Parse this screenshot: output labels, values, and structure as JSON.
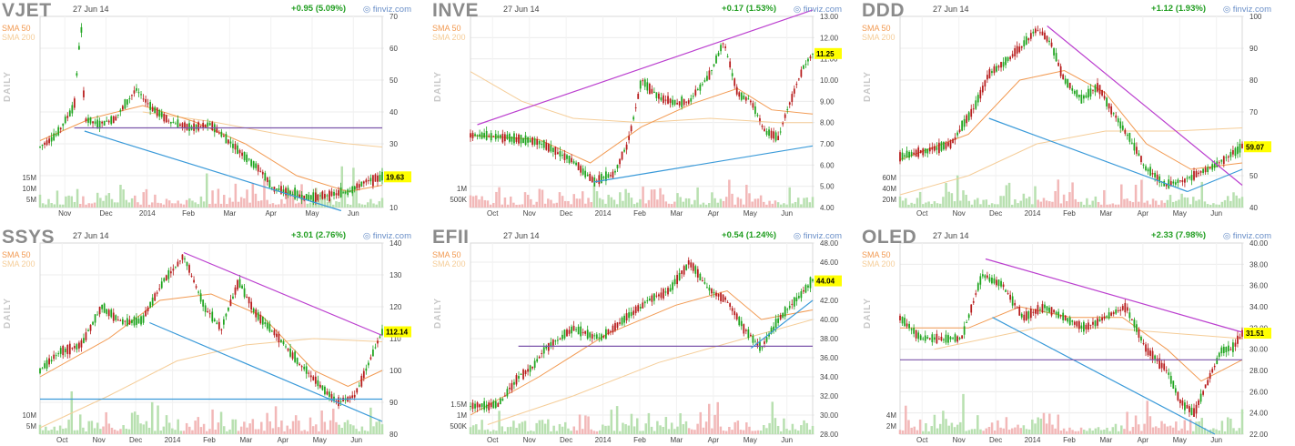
{
  "panels": [
    {
      "ticker": "VJET",
      "date": "27 Jun 14",
      "sma50": "SMA 50",
      "sma200": "SMA 200",
      "change": "+0.95 (5.09%)",
      "finviz": "finviz.com",
      "daily": "DAILY",
      "last": "19.63",
      "colors": {
        "up": "#1fa51f",
        "down": "#b71c1c",
        "sma50": "#f29a52",
        "sma200": "#f5cd98",
        "price_label_bg": "#ffff00"
      }
    },
    {
      "ticker": "INVE",
      "date": "27 Jun 14",
      "sma50": "SMA 50",
      "sma200": "SMA 200",
      "change": "+0.17 (1.53%)",
      "finviz": "finviz.com",
      "daily": "DAILY",
      "last": "11.25"
    },
    {
      "ticker": "DDD",
      "date": "27 Jun 14",
      "sma50": "SMA 50",
      "sma200": "SMA 200",
      "change": "+1.12 (1.93%)",
      "finviz": "finviz.com",
      "daily": "DAILY",
      "last": "59.07"
    },
    {
      "ticker": "SSYS",
      "date": "27 Jun 14",
      "sma50": "SMA 50",
      "sma200": "SMA 200",
      "change": "+3.01 (2.76%)",
      "finviz": "finviz.com",
      "daily": "DAILY",
      "last": "112.14"
    },
    {
      "ticker": "EFII",
      "date": "27 Jun 14",
      "sma50": "SMA 50",
      "sma200": "SMA 200",
      "change": "+0.54 (1.24%)",
      "finviz": "finviz.com",
      "daily": "DAILY",
      "last": "44.04"
    },
    {
      "ticker": "OLED",
      "date": "27 Jun 14",
      "sma50": "SMA 50",
      "sma200": "SMA 200",
      "change": "+2.33 (7.98%)",
      "finviz": "finviz.com",
      "daily": "DAILY",
      "last": "31.51"
    }
  ],
  "chart_data": [
    {
      "type": "candlestick",
      "ticker": "VJET",
      "x_ticks": [
        "Nov",
        "Dec",
        "2014",
        "Feb",
        "Mar",
        "Apr",
        "May",
        "Jun"
      ],
      "y_ticks": [
        10,
        20,
        30,
        40,
        50,
        60,
        70
      ],
      "ylim": [
        10,
        70
      ],
      "volume_ticks": [
        "5M",
        "10M",
        "15M"
      ],
      "price_path": [
        [
          0,
          29
        ],
        [
          0.05,
          33
        ],
        [
          0.1,
          42
        ],
        [
          0.12,
          68
        ],
        [
          0.13,
          38
        ],
        [
          0.17,
          36
        ],
        [
          0.22,
          38
        ],
        [
          0.28,
          47
        ],
        [
          0.33,
          41
        ],
        [
          0.38,
          37
        ],
        [
          0.44,
          35
        ],
        [
          0.5,
          36
        ],
        [
          0.55,
          31
        ],
        [
          0.6,
          26
        ],
        [
          0.65,
          21
        ],
        [
          0.68,
          16
        ],
        [
          0.72,
          15
        ],
        [
          0.78,
          13
        ],
        [
          0.85,
          14
        ],
        [
          0.9,
          15
        ],
        [
          0.95,
          18
        ],
        [
          1.0,
          19.63
        ]
      ],
      "sma50": [
        [
          0,
          31
        ],
        [
          0.15,
          38
        ],
        [
          0.3,
          42
        ],
        [
          0.45,
          37
        ],
        [
          0.6,
          30
        ],
        [
          0.75,
          20
        ],
        [
          0.9,
          15
        ],
        [
          1,
          17
        ]
      ],
      "sma200": [
        [
          0.3,
          40
        ],
        [
          0.5,
          37
        ],
        [
          0.7,
          33
        ],
        [
          0.9,
          30
        ],
        [
          1,
          29
        ]
      ],
      "trendlines": [
        {
          "color": "#3a9ad9",
          "from": [
            0.13,
            34
          ],
          "to": [
            0.88,
            9
          ]
        },
        {
          "color": "#7b55aa",
          "from": [
            0.1,
            35
          ],
          "to": [
            1,
            35
          ]
        }
      ],
      "last": 19.63,
      "change": "+0.95 (5.09%)"
    },
    {
      "type": "candlestick",
      "ticker": "INVE",
      "x_ticks": [
        "Oct",
        "Nov",
        "Dec",
        "2014",
        "Feb",
        "Mar",
        "Apr",
        "May",
        "Jun"
      ],
      "y_ticks": [
        4,
        5,
        6,
        7,
        8,
        9,
        10,
        11,
        12,
        13
      ],
      "ylim": [
        4,
        13
      ],
      "volume_ticks": [
        "500K",
        "1M"
      ],
      "price_path": [
        [
          0,
          7.4
        ],
        [
          0.1,
          7.3
        ],
        [
          0.2,
          7.1
        ],
        [
          0.3,
          6.2
        ],
        [
          0.36,
          5.2
        ],
        [
          0.42,
          5.6
        ],
        [
          0.46,
          7.0
        ],
        [
          0.5,
          10.0
        ],
        [
          0.55,
          9.2
        ],
        [
          0.6,
          8.9
        ],
        [
          0.64,
          9.0
        ],
        [
          0.7,
          10.3
        ],
        [
          0.74,
          11.8
        ],
        [
          0.78,
          9.4
        ],
        [
          0.82,
          9.0
        ],
        [
          0.86,
          7.6
        ],
        [
          0.9,
          7.3
        ],
        [
          0.93,
          8.8
        ],
        [
          0.97,
          10.5
        ],
        [
          1.0,
          11.25
        ]
      ],
      "sma50": [
        [
          0,
          7.4
        ],
        [
          0.2,
          7.2
        ],
        [
          0.35,
          6.1
        ],
        [
          0.5,
          7.8
        ],
        [
          0.65,
          8.9
        ],
        [
          0.78,
          9.6
        ],
        [
          0.88,
          8.6
        ],
        [
          1,
          8.4
        ]
      ],
      "sma200": [
        [
          0,
          10.4
        ],
        [
          0.15,
          9.0
        ],
        [
          0.3,
          8.2
        ],
        [
          0.5,
          8.0
        ],
        [
          0.7,
          8.2
        ],
        [
          0.9,
          8.0
        ],
        [
          1,
          8.0
        ]
      ],
      "trendlines": [
        {
          "color": "#bb3fcf",
          "from": [
            0.02,
            7.9
          ],
          "to": [
            1,
            13.3
          ]
        },
        {
          "color": "#3a9ad9",
          "from": [
            0.36,
            5.2
          ],
          "to": [
            1,
            6.9
          ]
        }
      ],
      "last": 11.25,
      "change": "+0.17 (1.53%)"
    },
    {
      "type": "candlestick",
      "ticker": "DDD",
      "x_ticks": [
        "Oct",
        "Nov",
        "Dec",
        "2014",
        "Feb",
        "Mar",
        "Apr",
        "May",
        "Jun"
      ],
      "y_ticks": [
        40,
        50,
        60,
        70,
        80,
        90,
        100
      ],
      "ylim": [
        40,
        100
      ],
      "volume_ticks": [
        "20M",
        "40M",
        "60M"
      ],
      "price_path": [
        [
          0,
          56
        ],
        [
          0.08,
          58
        ],
        [
          0.15,
          60
        ],
        [
          0.22,
          72
        ],
        [
          0.26,
          82
        ],
        [
          0.3,
          85
        ],
        [
          0.35,
          90
        ],
        [
          0.4,
          96
        ],
        [
          0.44,
          92
        ],
        [
          0.48,
          80
        ],
        [
          0.53,
          74
        ],
        [
          0.58,
          78
        ],
        [
          0.62,
          70
        ],
        [
          0.67,
          62
        ],
        [
          0.72,
          52
        ],
        [
          0.78,
          47
        ],
        [
          0.84,
          49
        ],
        [
          0.88,
          51
        ],
        [
          0.93,
          54
        ],
        [
          1.0,
          59.07
        ]
      ],
      "sma50": [
        [
          0,
          55
        ],
        [
          0.2,
          63
        ],
        [
          0.35,
          80
        ],
        [
          0.48,
          83
        ],
        [
          0.6,
          76
        ],
        [
          0.72,
          60
        ],
        [
          0.85,
          52
        ],
        [
          1,
          54
        ]
      ],
      "sma200": [
        [
          0,
          44
        ],
        [
          0.2,
          50
        ],
        [
          0.4,
          60
        ],
        [
          0.6,
          64
        ],
        [
          0.8,
          64
        ],
        [
          1,
          65
        ]
      ],
      "trendlines": [
        {
          "color": "#bb3fcf",
          "from": [
            0.43,
            97
          ],
          "to": [
            1,
            47
          ]
        },
        {
          "color": "#3a9ad9",
          "from": [
            0.26,
            68
          ],
          "to": [
            0.84,
            45
          ]
        },
        {
          "color": "#3a9ad9",
          "from": [
            0.84,
            45
          ],
          "to": [
            1,
            52
          ]
        }
      ],
      "last": 59.07,
      "change": "+1.12 (1.93%)"
    },
    {
      "type": "candlestick",
      "ticker": "SSYS",
      "x_ticks": [
        "Oct",
        "Nov",
        "Dec",
        "2014",
        "Feb",
        "Mar",
        "Apr",
        "May",
        "Jun"
      ],
      "y_ticks": [
        80,
        90,
        100,
        110,
        120,
        130,
        140
      ],
      "ylim": [
        80,
        140
      ],
      "volume_ticks": [
        "5M",
        "10M"
      ],
      "price_path": [
        [
          0,
          100
        ],
        [
          0.06,
          106
        ],
        [
          0.12,
          108
        ],
        [
          0.18,
          120
        ],
        [
          0.24,
          115
        ],
        [
          0.3,
          116
        ],
        [
          0.36,
          128
        ],
        [
          0.42,
          136
        ],
        [
          0.48,
          120
        ],
        [
          0.53,
          113
        ],
        [
          0.58,
          128
        ],
        [
          0.63,
          118
        ],
        [
          0.7,
          110
        ],
        [
          0.76,
          102
        ],
        [
          0.82,
          95
        ],
        [
          0.87,
          90
        ],
        [
          0.92,
          92
        ],
        [
          0.96,
          102
        ],
        [
          1.0,
          112.14
        ]
      ],
      "sma50": [
        [
          0,
          98
        ],
        [
          0.2,
          110
        ],
        [
          0.35,
          122
        ],
        [
          0.5,
          124
        ],
        [
          0.65,
          117
        ],
        [
          0.8,
          100
        ],
        [
          0.9,
          95
        ],
        [
          1,
          100
        ]
      ],
      "sma200": [
        [
          0,
          82
        ],
        [
          0.2,
          92
        ],
        [
          0.4,
          103
        ],
        [
          0.6,
          108
        ],
        [
          0.8,
          110
        ],
        [
          1,
          109
        ]
      ],
      "trendlines": [
        {
          "color": "#bb3fcf",
          "from": [
            0.42,
            137
          ],
          "to": [
            1,
            111
          ]
        },
        {
          "color": "#3a9ad9",
          "from": [
            0.32,
            115
          ],
          "to": [
            1,
            84
          ]
        },
        {
          "color": "#3a9ad9",
          "from": [
            0,
            91
          ],
          "to": [
            1,
            91
          ]
        }
      ],
      "last": 112.14,
      "change": "+3.01 (2.76%)"
    },
    {
      "type": "candlestick",
      "ticker": "EFII",
      "x_ticks": [
        "Oct",
        "Nov",
        "Dec",
        "2014",
        "Feb",
        "Mar",
        "Apr",
        "May",
        "Jun"
      ],
      "y_ticks": [
        28,
        30,
        32,
        34,
        36,
        38,
        40,
        42,
        44,
        46,
        48
      ],
      "ylim": [
        28,
        48
      ],
      "volume_ticks": [
        "500K",
        "1M",
        "1.5M"
      ],
      "price_path": [
        [
          0,
          31
        ],
        [
          0.08,
          31
        ],
        [
          0.14,
          34
        ],
        [
          0.18,
          35
        ],
        [
          0.22,
          37
        ],
        [
          0.3,
          39
        ],
        [
          0.38,
          38
        ],
        [
          0.45,
          40
        ],
        [
          0.52,
          42
        ],
        [
          0.58,
          43
        ],
        [
          0.64,
          46
        ],
        [
          0.7,
          43
        ],
        [
          0.75,
          42
        ],
        [
          0.8,
          39
        ],
        [
          0.85,
          37
        ],
        [
          0.9,
          40
        ],
        [
          0.95,
          42
        ],
        [
          1.0,
          44.04
        ]
      ],
      "sma50": [
        [
          0,
          30
        ],
        [
          0.2,
          34
        ],
        [
          0.4,
          38.5
        ],
        [
          0.6,
          41.5
        ],
        [
          0.75,
          43
        ],
        [
          0.85,
          40
        ],
        [
          1,
          41
        ]
      ],
      "sma200": [
        [
          0.05,
          29
        ],
        [
          0.3,
          32
        ],
        [
          0.55,
          35.5
        ],
        [
          0.8,
          38
        ],
        [
          1,
          40
        ]
      ],
      "trendlines": [
        {
          "color": "#7b55aa",
          "from": [
            0.14,
            37.2
          ],
          "to": [
            1,
            37.2
          ]
        },
        {
          "color": "#3a9ad9",
          "from": [
            0.82,
            37
          ],
          "to": [
            1,
            42
          ]
        }
      ],
      "last": 44.04,
      "change": "+0.54 (1.24%)"
    },
    {
      "type": "candlestick",
      "ticker": "OLED",
      "x_ticks": [
        "Oct",
        "Nov",
        "Dec",
        "2014",
        "Feb",
        "Mar",
        "Apr",
        "May",
        "Jun"
      ],
      "y_ticks": [
        22,
        24,
        26,
        28,
        30,
        32,
        34,
        36,
        38,
        40
      ],
      "ylim": [
        22,
        40
      ],
      "volume_ticks": [
        "2M",
        "4M"
      ],
      "price_path": [
        [
          0,
          33
        ],
        [
          0.06,
          31
        ],
        [
          0.12,
          31
        ],
        [
          0.18,
          31
        ],
        [
          0.24,
          37
        ],
        [
          0.3,
          36
        ],
        [
          0.36,
          33
        ],
        [
          0.42,
          34
        ],
        [
          0.48,
          33
        ],
        [
          0.54,
          32
        ],
        [
          0.6,
          33
        ],
        [
          0.66,
          34
        ],
        [
          0.72,
          30
        ],
        [
          0.78,
          28
        ],
        [
          0.82,
          25
        ],
        [
          0.86,
          24
        ],
        [
          0.9,
          27
        ],
        [
          0.94,
          30
        ],
        [
          0.97,
          30
        ],
        [
          1.0,
          31.51
        ]
      ],
      "sma50": [
        [
          0,
          32
        ],
        [
          0.2,
          32
        ],
        [
          0.35,
          34
        ],
        [
          0.5,
          33
        ],
        [
          0.65,
          33
        ],
        [
          0.78,
          30
        ],
        [
          0.88,
          27
        ],
        [
          1,
          29
        ]
      ],
      "sma200": [
        [
          0.1,
          30
        ],
        [
          0.4,
          32
        ],
        [
          0.6,
          32
        ],
        [
          0.8,
          31.5
        ],
        [
          1,
          31
        ]
      ],
      "trendlines": [
        {
          "color": "#bb3fcf",
          "from": [
            0.25,
            38.5
          ],
          "to": [
            1,
            31.6
          ]
        },
        {
          "color": "#3a9ad9",
          "from": [
            0.27,
            33
          ],
          "to": [
            0.92,
            22
          ]
        },
        {
          "color": "#7b55aa",
          "from": [
            0,
            29
          ],
          "to": [
            1,
            29
          ]
        }
      ],
      "last": 31.51,
      "change": "+2.33 (7.98%)"
    }
  ]
}
